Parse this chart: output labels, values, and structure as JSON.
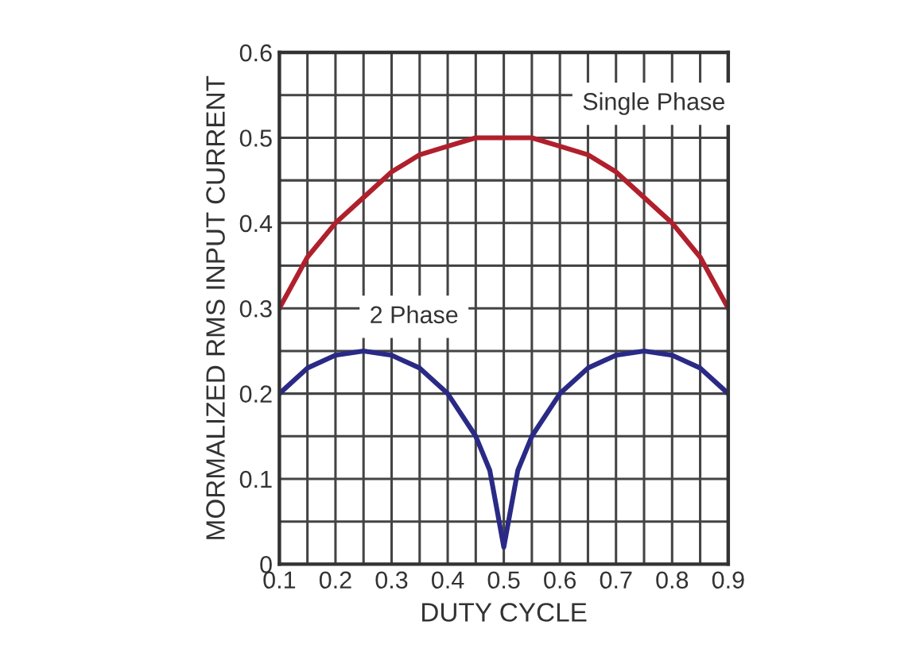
{
  "chart_data": {
    "type": "line",
    "xlabel": "DUTY CYCLE",
    "ylabel": "MORMALIZED RMS INPUT CURRENT",
    "xlim": [
      0.1,
      0.9
    ],
    "ylim": [
      0,
      0.6
    ],
    "xticks": [
      0.1,
      {
        "value": 0.15,
        "label": null
      },
      0.2,
      {
        "value": 0.25,
        "label": null
      },
      0.3,
      {
        "value": 0.35,
        "label": null
      },
      0.4,
      {
        "value": 0.45,
        "label": null
      },
      0.5,
      {
        "value": 0.55,
        "label": null
      },
      0.6,
      {
        "value": 0.65,
        "label": null
      },
      0.7,
      {
        "value": 0.75,
        "label": null
      },
      0.8,
      {
        "value": 0.85,
        "label": null
      },
      0.9
    ],
    "yticks": [
      0,
      {
        "value": 0.05,
        "label": null
      },
      0.1,
      {
        "value": 0.15,
        "label": null
      },
      0.2,
      {
        "value": 0.25,
        "label": null
      },
      0.3,
      {
        "value": 0.35,
        "label": null
      },
      0.4,
      {
        "value": 0.45,
        "label": null
      },
      0.5,
      {
        "value": 0.55,
        "label": null
      },
      0.6
    ],
    "grid": true,
    "marker": "none",
    "line_style": "solid",
    "series": [
      {
        "name": "Single Phase",
        "color": "#b0202c",
        "x": [
          0.1,
          0.15,
          0.2,
          0.25,
          0.3,
          0.35,
          0.4,
          0.45,
          0.5,
          0.55,
          0.6,
          0.65,
          0.7,
          0.75,
          0.8,
          0.85,
          0.9
        ],
        "values": [
          0.3,
          0.36,
          0.4,
          0.43,
          0.46,
          0.48,
          0.49,
          0.5,
          0.5,
          0.5,
          0.49,
          0.48,
          0.46,
          0.43,
          0.4,
          0.36,
          0.3
        ]
      },
      {
        "name": "2 Phase",
        "color": "#2a2a86",
        "x": [
          0.1,
          0.15,
          0.2,
          0.25,
          0.3,
          0.35,
          0.4,
          0.45,
          0.475,
          0.5,
          0.525,
          0.55,
          0.6,
          0.65,
          0.7,
          0.75,
          0.8,
          0.85,
          0.9
        ],
        "values": [
          0.2,
          0.23,
          0.245,
          0.25,
          0.245,
          0.23,
          0.2,
          0.15,
          0.11,
          0.02,
          0.11,
          0.15,
          0.2,
          0.23,
          0.245,
          0.25,
          0.245,
          0.23,
          0.2
        ]
      }
    ]
  }
}
